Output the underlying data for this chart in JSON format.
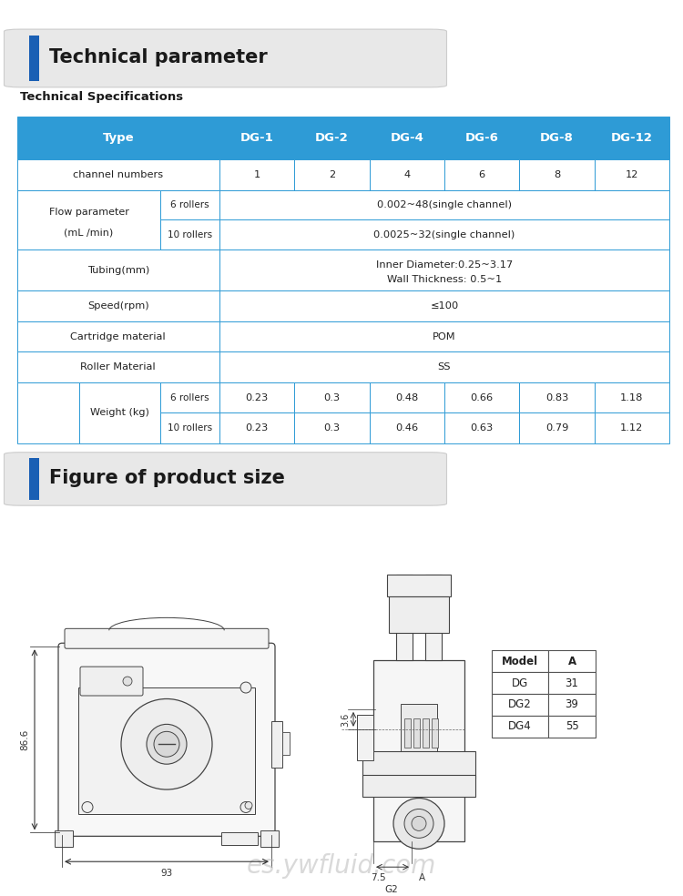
{
  "title1": "Technical parameter",
  "title2": "Figure of product size",
  "tech_spec_label": "Technical Specifications",
  "header_bg": "#2e9bd6",
  "header_text_color": "#ffffff",
  "table_border_color": "#2e9bd6",
  "title_box_bg": "#e8e8e8",
  "title_bar_color": "#1a5fb4",
  "header_row": [
    "Type",
    "DG-1",
    "DG-2",
    "DG-4",
    "DG-6",
    "DG-8",
    "DG-12"
  ],
  "size_table": {
    "headers": [
      "Model",
      "A"
    ],
    "rows": [
      [
        "DG",
        "31"
      ],
      [
        "DG2",
        "39"
      ],
      [
        "DG4",
        "55"
      ]
    ]
  },
  "watermark": "es.ywfluid.com",
  "dim_height": "86.6",
  "dim_width": "93",
  "dim_36": "3.6",
  "dim_75": "7.5",
  "dim_A": "A",
  "dim_G2": "G2"
}
